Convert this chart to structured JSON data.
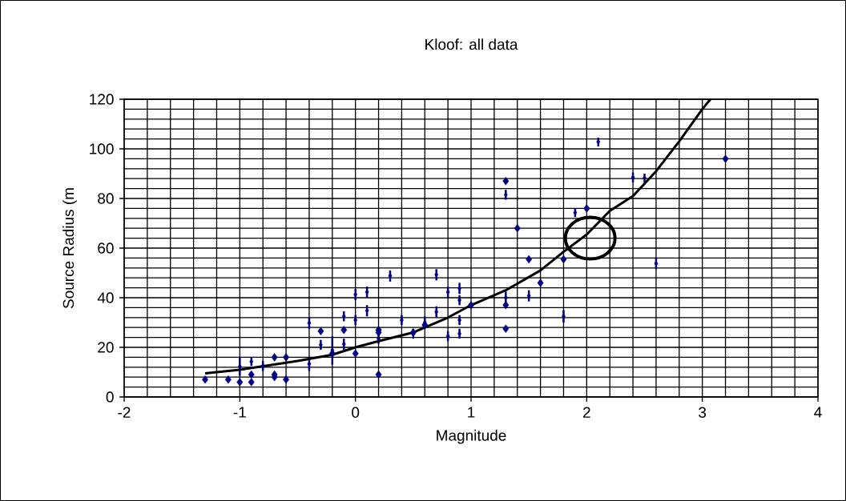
{
  "chart_data": {
    "type": "scatter",
    "title": "Kloof: all data",
    "xlabel": "Magnitude",
    "ylabel": "Source Radius (m",
    "xlim": [
      -2,
      4
    ],
    "ylim": [
      0,
      120
    ],
    "xticks": [
      -2,
      -1,
      0,
      1,
      2,
      3,
      4
    ],
    "yticks": [
      0,
      20,
      40,
      60,
      80,
      100,
      120
    ],
    "grid": true,
    "series": [
      {
        "marker": "diamond",
        "color": "#000080",
        "x": [
          -1.3,
          -1.1,
          -1.0,
          -0.9,
          -0.9,
          -0.7,
          -0.7,
          -0.7,
          -0.6,
          -0.6,
          -0.3,
          -0.2,
          -0.1,
          0.0,
          0.2,
          0.2,
          0.2,
          0.5,
          0.6,
          1.0,
          1.3,
          1.3,
          1.3,
          1.4,
          1.5,
          1.6,
          1.8,
          2.0,
          3.2
        ],
        "values": [
          7,
          7,
          6,
          9,
          6,
          16,
          8,
          9,
          16,
          7,
          26.5,
          17.5,
          27,
          17.5,
          27,
          26,
          9,
          26,
          29,
          37,
          37,
          27.5,
          87,
          68,
          55.5,
          46,
          55.5,
          76,
          96
        ]
      },
      {
        "marker": "none",
        "color": "#000080",
        "x": [
          -1.0,
          -0.9,
          -0.8,
          -0.4,
          -0.4,
          -0.3,
          -0.2,
          -0.1,
          -0.1,
          0.0,
          0.0,
          0.1,
          0.1,
          0.2,
          0.3,
          0.4,
          0.5,
          0.6,
          0.7,
          0.7,
          0.8,
          0.8,
          0.9,
          0.9,
          0.9,
          0.9,
          1.3,
          1.3,
          1.5,
          1.8,
          1.9,
          2.1,
          2.4,
          2.5,
          2.6
        ],
        "values": [
          12.3,
          14.3,
          12.5,
          29.8,
          13.3,
          21,
          18.8,
          32.5,
          21.3,
          41.3,
          31,
          42.3,
          34.8,
          23.5,
          48.8,
          31,
          25.5,
          30,
          49.3,
          34.3,
          42.3,
          24.5,
          43.8,
          39,
          31,
          25.5,
          40,
          81.5,
          40.8,
          32.5,
          74.3,
          102.8,
          88.5,
          88.3,
          53.8
        ],
        "errors": [
          [
            8.5,
            16
          ],
          [
            12.5,
            16
          ],
          [
            10.5,
            14.5
          ],
          [
            27.5,
            32
          ],
          [
            10.5,
            16
          ],
          [
            19,
            23
          ],
          [
            13,
            24.5
          ],
          [
            30.5,
            34.5
          ],
          [
            19,
            23.5
          ],
          [
            39,
            43.5
          ],
          [
            29,
            33
          ],
          [
            40,
            44.5
          ],
          [
            32.5,
            37
          ],
          [
            21.5,
            25.5
          ],
          [
            46.5,
            51
          ],
          [
            29,
            33
          ],
          [
            23.5,
            27.5
          ],
          [
            27.5,
            32.5
          ],
          [
            47,
            51.5
          ],
          [
            32,
            36.5
          ],
          [
            40,
            44.5
          ],
          [
            22.5,
            26.5
          ],
          [
            41.5,
            46
          ],
          [
            37,
            41
          ],
          [
            29,
            33
          ],
          [
            23.5,
            27.5
          ],
          [
            37.5,
            42.5
          ],
          [
            79.5,
            83.5
          ],
          [
            38.5,
            43
          ],
          [
            30,
            35
          ],
          [
            72.5,
            76
          ],
          [
            101,
            104.5
          ],
          [
            86.5,
            90.5
          ],
          [
            86.5,
            90
          ],
          [
            51.5,
            56
          ]
        ]
      },
      {
        "type": "line",
        "marker": "none",
        "color": "#000000",
        "x": [
          -1.3,
          -1.0,
          -0.5,
          -0.2,
          0.0,
          0.2,
          0.5,
          0.8,
          1.0,
          1.3,
          1.6,
          1.8,
          2.0,
          2.2,
          2.4,
          2.6,
          2.8,
          3.0,
          3.07
        ],
        "values": [
          9.5,
          11,
          14.5,
          17,
          20,
          22.5,
          26,
          32,
          37,
          43,
          51,
          58.5,
          65.5,
          75,
          81,
          91,
          103,
          116,
          120
        ]
      }
    ]
  }
}
